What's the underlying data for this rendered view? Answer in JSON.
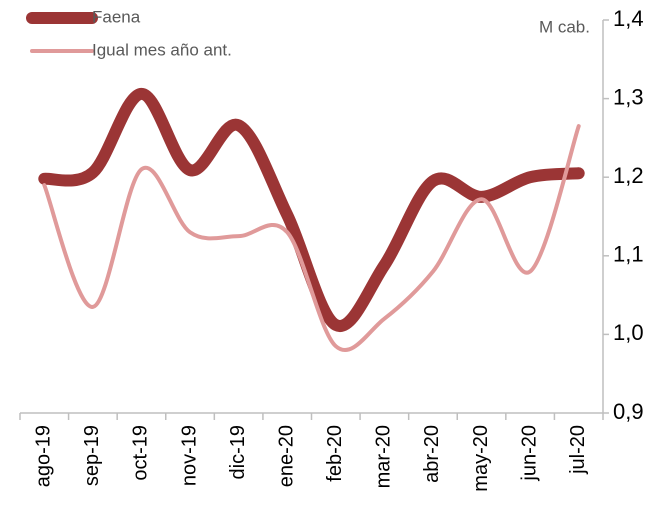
{
  "chart_data": {
    "type": "line",
    "unit_label": "M cab.",
    "categories": [
      "ago-19",
      "sep-19",
      "oct-19",
      "nov-19",
      "dic-19",
      "ene-20",
      "feb-20",
      "mar-20",
      "abr-20",
      "may-20",
      "jun-20",
      "jul-20"
    ],
    "series": [
      {
        "name": "Faena",
        "color": "#9b3535",
        "values": [
          1.198,
          1.206,
          1.306,
          1.209,
          1.266,
          1.152,
          1.012,
          1.088,
          1.195,
          1.175,
          1.2,
          1.205
        ]
      },
      {
        "name": "Igual mes año ant.",
        "color": "#e09a9a",
        "values": [
          1.19,
          1.035,
          1.21,
          1.13,
          1.125,
          1.13,
          0.985,
          1.02,
          1.08,
          1.172,
          1.08,
          1.265
        ]
      }
    ],
    "ylim": [
      0.9,
      1.4
    ],
    "yticks": [
      {
        "value": 0.9,
        "label": "0,9"
      },
      {
        "value": 1.0,
        "label": "1,0"
      },
      {
        "value": 1.1,
        "label": "1,1"
      },
      {
        "value": 1.2,
        "label": "1,2"
      },
      {
        "value": 1.3,
        "label": "1,3"
      },
      {
        "value": 1.4,
        "label": "1,4"
      }
    ],
    "grid": false,
    "legend": "top-left"
  }
}
